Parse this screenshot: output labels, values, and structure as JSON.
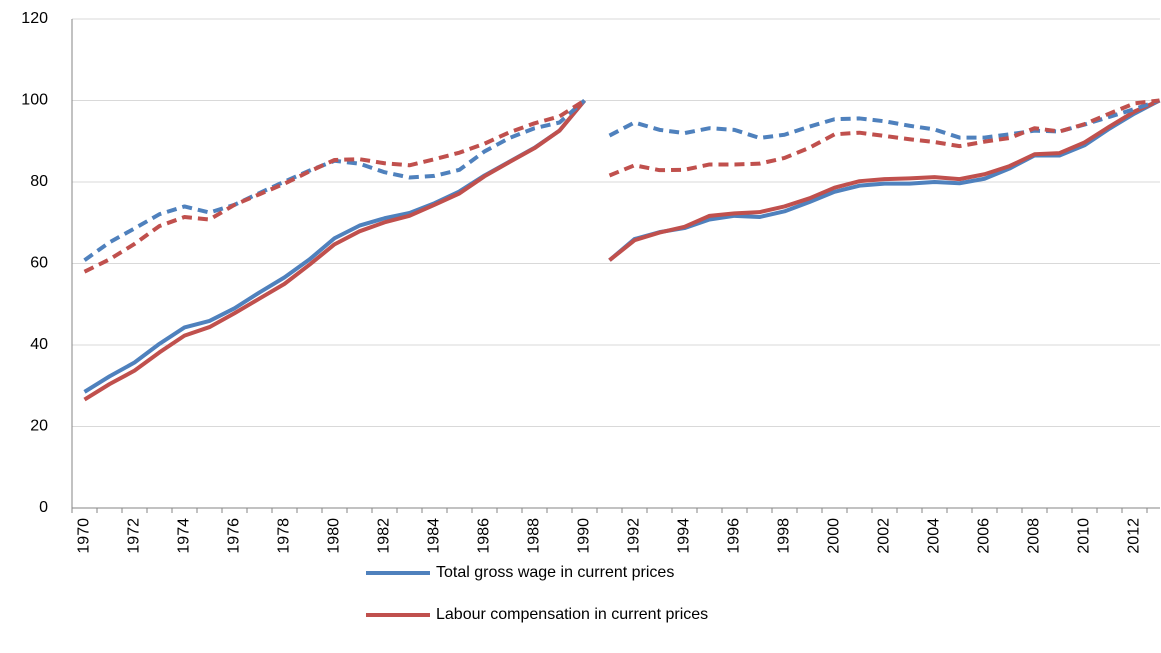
{
  "chart_data": {
    "type": "line",
    "categories": [
      "1970",
      null,
      "1972",
      null,
      "1974",
      null,
      "1976",
      null,
      "1978",
      null,
      "1980",
      null,
      "1982",
      null,
      "1984",
      null,
      "1986",
      null,
      "1988",
      null,
      "1990",
      null,
      "1992",
      null,
      "1994",
      null,
      "1996",
      null,
      "1998",
      null,
      "2000",
      null,
      "2002",
      null,
      "2004",
      null,
      "2006",
      null,
      "2008",
      null,
      "2010",
      null,
      "2012",
      null
    ],
    "line_break_after": "1990",
    "series": [
      {
        "name": "Total gross wage in current prices",
        "color": "#4f81bd",
        "dashed": false,
        "values": [
          28.5,
          32.3,
          35.7,
          40.3,
          44.3,
          45.9,
          49.0,
          52.9,
          56.6,
          61.0,
          66.2,
          69.3,
          71.1,
          72.4,
          74.8,
          77.7,
          81.6,
          85.0,
          88.4,
          92.6,
          100,
          60.8,
          66.0,
          67.7,
          68.7,
          70.8,
          71.7,
          71.4,
          72.8,
          75.1,
          77.6,
          79.1,
          79.6,
          79.6,
          80.0,
          79.7,
          80.8,
          83.3,
          86.5,
          86.5,
          89.0,
          93.1,
          96.8,
          100
        ]
      },
      {
        "name": "Labour compensation in current prices",
        "color": "#c0504d",
        "dashed": false,
        "values": [
          26.6,
          30.4,
          33.7,
          38.2,
          42.3,
          44.4,
          47.8,
          51.4,
          55.0,
          59.7,
          64.7,
          67.9,
          70.1,
          71.7,
          74.4,
          77.2,
          81.4,
          84.9,
          88.3,
          92.6,
          100,
          60.8,
          65.7,
          67.6,
          69.0,
          71.7,
          72.3,
          72.6,
          74.0,
          76.0,
          78.6,
          80.2,
          80.7,
          80.9,
          81.2,
          80.7,
          81.9,
          83.9,
          86.8,
          87.1,
          89.7,
          93.6,
          97.3,
          100
        ]
      },
      {
        "color": "#4f81bd",
        "dashed": true,
        "values": [
          60.8,
          65.2,
          68.6,
          72.1,
          74.0,
          72.5,
          74.4,
          77.3,
          80.1,
          82.8,
          85.2,
          84.5,
          82.4,
          81.1,
          81.5,
          83.0,
          87.5,
          90.8,
          93.2,
          94.6,
          100,
          91.4,
          94.6,
          92.8,
          92.0,
          93.2,
          92.8,
          90.8,
          91.6,
          93.6,
          95.4,
          95.6,
          94.9,
          93.8,
          92.9,
          90.9,
          90.9,
          91.7,
          92.6,
          92.4,
          94.1,
          96.0,
          97.9,
          100
        ]
      },
      {
        "color": "#c0504d",
        "dashed": true,
        "values": [
          58.0,
          61.0,
          64.8,
          69.2,
          71.4,
          70.8,
          74.4,
          77.0,
          79.6,
          82.6,
          85.4,
          85.6,
          84.6,
          84.1,
          85.6,
          87.2,
          89.4,
          92.2,
          94.4,
          96.1,
          100,
          81.6,
          84.1,
          82.9,
          83.0,
          84.3,
          84.3,
          84.5,
          85.9,
          88.4,
          91.7,
          92.1,
          91.3,
          90.5,
          89.8,
          88.8,
          89.9,
          90.8,
          93.2,
          92.4,
          94.2,
          96.8,
          99.3,
          100
        ]
      }
    ],
    "ylim": [
      0,
      120
    ],
    "yticks": [
      0,
      20,
      40,
      60,
      80,
      100,
      120
    ],
    "grid": true,
    "legend": "bottom"
  }
}
